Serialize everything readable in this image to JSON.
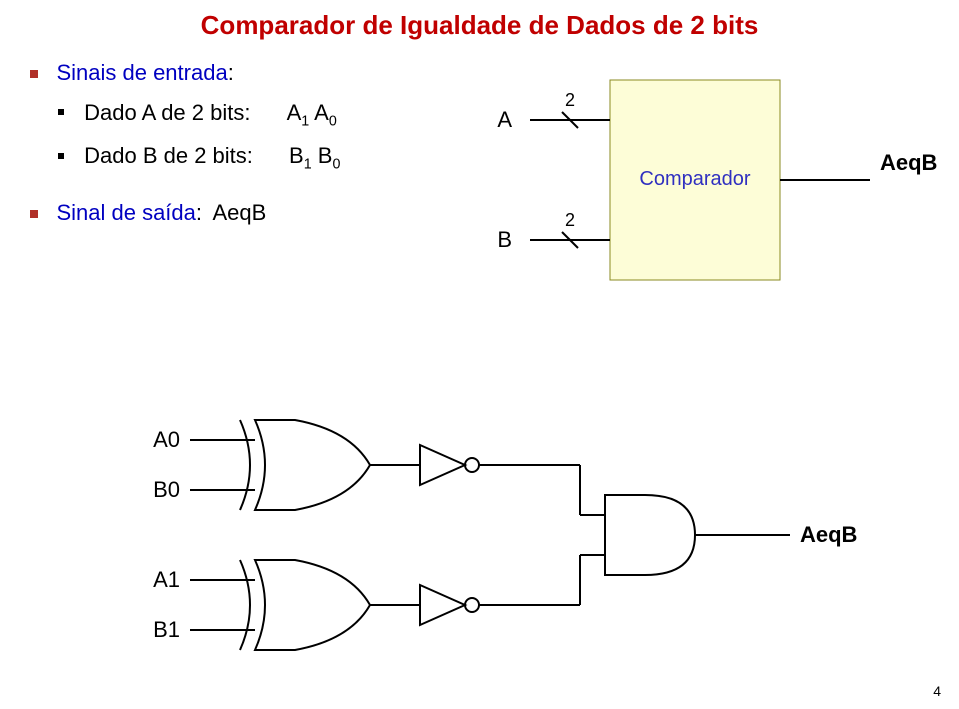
{
  "title": "Comparador de Igualdade de Dados de 2 bits",
  "entrada_label": "Sinais de entrada",
  "dadoA_label": "Dado A de 2 bits:",
  "dadoA_value_html": "A<sub>1</sub> A<sub>0</sub>",
  "dadoB_label": "Dado B de 2 bits:",
  "dadoB_value_html": "B<sub>1</sub> B<sub>0</sub>",
  "saida_label": "Sinal de saída",
  "saida_value": "AeqB",
  "page_number": "4",
  "block": {
    "box_fill": "#fdfdd7",
    "box_stroke": "#8a8a20",
    "box_label": "Comparador",
    "label_color": "#3030c0",
    "inputs": [
      {
        "name": "A",
        "width": "2"
      },
      {
        "name": "B",
        "width": "2"
      }
    ],
    "output": "AeqB"
  },
  "circuit": {
    "inputs": [
      "A0",
      "B0",
      "A1",
      "B1"
    ],
    "output": "AeqB",
    "gates": {
      "xor": 2,
      "not": 2,
      "and": 1
    },
    "stroke": "#000000",
    "stroke_width": 2
  }
}
